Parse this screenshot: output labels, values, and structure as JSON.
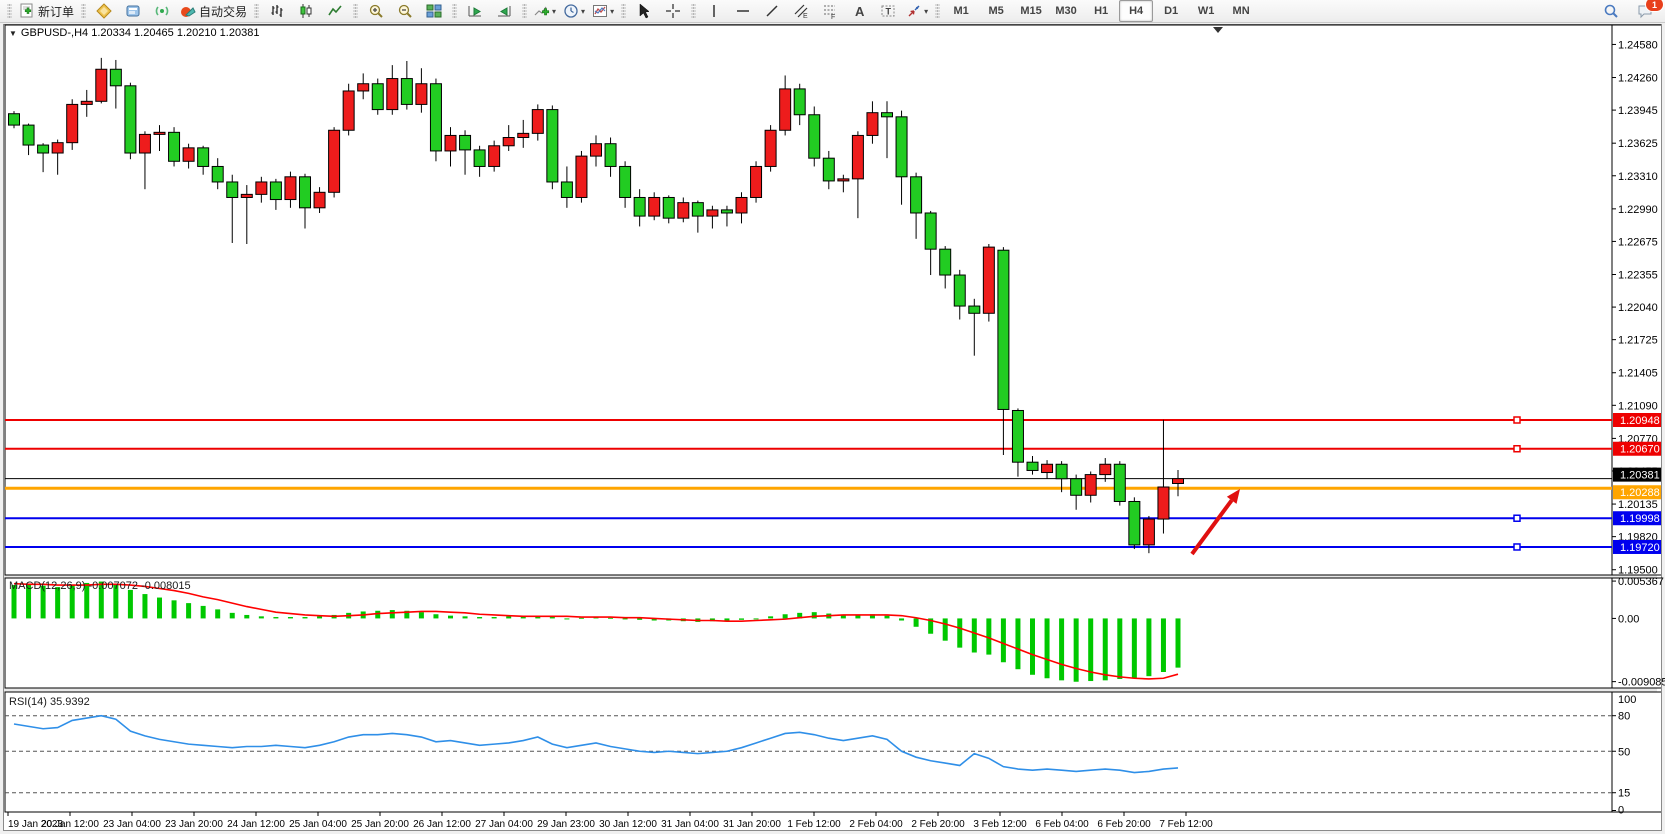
{
  "toolbar": {
    "new_order_label": "新订单",
    "autotrade_label": "自动交易",
    "groups": [
      {
        "items": [
          {
            "icon": "new-order-icon",
            "label_key": "new_order_label"
          }
        ]
      },
      {
        "items": [
          {
            "icon": "mql5-icon"
          },
          {
            "icon": "metaeditor-icon"
          },
          {
            "icon": "signals-icon"
          },
          {
            "icon": "autotrade-icon",
            "label_key": "autotrade_label"
          }
        ]
      },
      {
        "items": [
          {
            "icon": "bar-chart-icon"
          },
          {
            "icon": "candlestick-icon"
          },
          {
            "icon": "line-chart-icon"
          }
        ]
      },
      {
        "items": [
          {
            "icon": "zoom-in-icon"
          },
          {
            "icon": "zoom-out-icon"
          },
          {
            "icon": "tile-windows-icon"
          }
        ]
      },
      {
        "items": [
          {
            "icon": "auto-scroll-icon"
          },
          {
            "icon": "chart-shift-icon"
          }
        ]
      },
      {
        "items": [
          {
            "icon": "indicators-icon",
            "caret": true
          },
          {
            "icon": "periods-icon",
            "caret": true
          },
          {
            "icon": "templates-icon",
            "caret": true
          }
        ]
      },
      {
        "items": [
          {
            "icon": "cursor-icon"
          },
          {
            "icon": "crosshair-icon"
          }
        ]
      },
      {
        "items": [
          {
            "icon": "vline-icon"
          },
          {
            "icon": "hline-icon"
          },
          {
            "icon": "trendline-icon"
          },
          {
            "icon": "channel-icon"
          },
          {
            "icon": "fibonacci-icon"
          },
          {
            "icon": "text-icon"
          },
          {
            "icon": "label-icon"
          },
          {
            "icon": "arrows-icon",
            "caret": true
          }
        ]
      }
    ],
    "timeframes": [
      "M1",
      "M5",
      "M15",
      "M30",
      "H1",
      "H4",
      "D1",
      "W1",
      "MN"
    ],
    "active_timeframe": "H4",
    "right_icons": [
      {
        "icon": "search-icon"
      },
      {
        "icon": "chat-icon",
        "badge": "1"
      }
    ],
    "notification_count": "1"
  },
  "chart": {
    "symbol_title": "GBPUSD-,H4  1.20334 1.20465 1.20210 1.20381",
    "open": "1.20334",
    "high": "1.20465",
    "low": "1.20210",
    "close": "1.20381"
  },
  "chart_data": {
    "type": "candlestick",
    "symbol": "GBPUSD-",
    "timeframe": "H4",
    "price_axis_ticks": [
      "1.24580",
      "1.24260",
      "1.23945",
      "1.23625",
      "1.23310",
      "1.22990",
      "1.22675",
      "1.22355",
      "1.22040",
      "1.21725",
      "1.21405",
      "1.21090",
      "1.20770",
      "1.20455",
      "1.20135",
      "1.19820",
      "1.19500"
    ],
    "price_range": [
      1.19449,
      1.24768
    ],
    "time_labels": [
      "19 Jan 2023",
      "20 Jan 12:00",
      "23 Jan 04:00",
      "23 Jan 20:00",
      "24 Jan 12:00",
      "25 Jan 04:00",
      "25 Jan 20:00",
      "26 Jan 12:00",
      "27 Jan 04:00",
      "29 Jan 23:00",
      "30 Jan 12:00",
      "31 Jan 04:00",
      "31 Jan 20:00",
      "1 Feb 12:00",
      "2 Feb 04:00",
      "2 Feb 20:00",
      "3 Feb 12:00",
      "6 Feb 04:00",
      "6 Feb 20:00",
      "7 Feb 12:00"
    ],
    "candles": [
      [
        1.2391,
        1.23935,
        1.2377,
        1.238
      ],
      [
        1.238,
        1.23815,
        1.2351,
        1.23607
      ],
      [
        1.23607,
        1.23625,
        1.23345,
        1.2353
      ],
      [
        1.2353,
        1.2366,
        1.2332,
        1.2363
      ],
      [
        1.2363,
        1.2405,
        1.2356,
        1.24
      ],
      [
        1.24,
        1.2414,
        1.2388,
        1.2403
      ],
      [
        1.2403,
        1.2445,
        1.2401,
        1.2434
      ],
      [
        1.2434,
        1.2443,
        1.2396,
        1.2418
      ],
      [
        1.2418,
        1.2421,
        1.2347,
        1.2353
      ],
      [
        1.2353,
        1.2374,
        1.2318,
        1.2371
      ],
      [
        1.2371,
        1.238,
        1.2355,
        1.2373
      ],
      [
        1.2373,
        1.2378,
        1.234,
        1.2345
      ],
      [
        1.2345,
        1.2362,
        1.2338,
        1.2358
      ],
      [
        1.2358,
        1.236,
        1.2332,
        1.234
      ],
      [
        1.234,
        1.2348,
        1.2318,
        1.2325
      ],
      [
        1.2325,
        1.2332,
        1.2266,
        1.231
      ],
      [
        1.231,
        1.2322,
        1.2265,
        1.2313
      ],
      [
        1.2313,
        1.233,
        1.2305,
        1.2325
      ],
      [
        1.2325,
        1.2328,
        1.2298,
        1.2308
      ],
      [
        1.2308,
        1.2335,
        1.23,
        1.233
      ],
      [
        1.233,
        1.2333,
        1.228,
        1.23
      ],
      [
        1.23,
        1.232,
        1.2295,
        1.2315
      ],
      [
        1.2315,
        1.2378,
        1.231,
        1.2375
      ],
      [
        1.2375,
        1.242,
        1.237,
        1.2413
      ],
      [
        1.2413,
        1.243,
        1.2405,
        1.242
      ],
      [
        1.242,
        1.2425,
        1.239,
        1.2395
      ],
      [
        1.2395,
        1.2438,
        1.239,
        1.2425
      ],
      [
        1.2425,
        1.2442,
        1.2395,
        1.24
      ],
      [
        1.24,
        1.2435,
        1.2392,
        1.242
      ],
      [
        1.242,
        1.2425,
        1.2345,
        1.2355
      ],
      [
        1.2355,
        1.2378,
        1.234,
        1.237
      ],
      [
        1.237,
        1.2375,
        1.2332,
        1.2356
      ],
      [
        1.2356,
        1.236,
        1.233,
        1.234
      ],
      [
        1.234,
        1.2365,
        1.2335,
        1.236
      ],
      [
        1.236,
        1.238,
        1.2355,
        1.2368
      ],
      [
        1.2368,
        1.2385,
        1.2358,
        1.2372
      ],
      [
        1.2372,
        1.24,
        1.2365,
        1.2395
      ],
      [
        1.2395,
        1.2399,
        1.2318,
        1.2325
      ],
      [
        1.2325,
        1.234,
        1.23,
        1.231
      ],
      [
        1.231,
        1.2355,
        1.2305,
        1.235
      ],
      [
        1.235,
        1.237,
        1.234,
        1.2362
      ],
      [
        1.2362,
        1.2368,
        1.233,
        1.234
      ],
      [
        1.234,
        1.2345,
        1.23,
        1.231
      ],
      [
        1.231,
        1.2318,
        1.2282,
        1.2292
      ],
      [
        1.2292,
        1.2315,
        1.2288,
        1.231
      ],
      [
        1.231,
        1.2312,
        1.2285,
        1.229
      ],
      [
        1.229,
        1.231,
        1.2286,
        1.2305
      ],
      [
        1.2305,
        1.2307,
        1.2276,
        1.2292
      ],
      [
        1.2292,
        1.2302,
        1.228,
        1.2298
      ],
      [
        1.2298,
        1.2302,
        1.2282,
        1.2295
      ],
      [
        1.2295,
        1.2315,
        1.2285,
        1.231
      ],
      [
        1.231,
        1.2345,
        1.2305,
        1.234
      ],
      [
        1.234,
        1.238,
        1.2335,
        1.2375
      ],
      [
        1.2375,
        1.2428,
        1.237,
        1.2415
      ],
      [
        1.2415,
        1.242,
        1.238,
        1.239
      ],
      [
        1.239,
        1.2398,
        1.234,
        1.2348
      ],
      [
        1.2348,
        1.2355,
        1.2318,
        1.2326
      ],
      [
        1.2326,
        1.2332,
        1.2315,
        1.2328
      ],
      [
        1.2328,
        1.2374,
        1.229,
        1.237
      ],
      [
        1.237,
        1.2403,
        1.2362,
        1.2392
      ],
      [
        1.2392,
        1.2403,
        1.2348,
        1.2388
      ],
      [
        1.2388,
        1.2394,
        1.2303,
        1.233
      ],
      [
        1.233,
        1.2334,
        1.227,
        1.2295
      ],
      [
        1.2295,
        1.2297,
        1.2235,
        1.226
      ],
      [
        1.226,
        1.2263,
        1.2222,
        1.2235
      ],
      [
        1.2235,
        1.224,
        1.2192,
        1.2205
      ],
      [
        1.2205,
        1.2212,
        1.2157,
        1.2198
      ],
      [
        1.2198,
        1.2265,
        1.219,
        1.2262
      ],
      [
        1.2259,
        1.2262,
        1.2061,
        1.2105
      ],
      [
        1.2104,
        1.2106,
        1.204,
        1.2054
      ],
      [
        1.2054,
        1.206,
        1.2042,
        1.2046
      ],
      [
        1.2044,
        1.2056,
        1.2038,
        1.2052
      ],
      [
        1.2052,
        1.2055,
        1.2025,
        1.2038
      ],
      [
        1.2038,
        1.2042,
        1.2008,
        1.2022
      ],
      [
        1.2022,
        1.2045,
        1.2015,
        1.2042
      ],
      [
        1.2042,
        1.2058,
        1.2035,
        1.2052
      ],
      [
        1.2052,
        1.2055,
        1.2012,
        1.2016
      ],
      [
        1.2016,
        1.202,
        1.197,
        1.1974
      ],
      [
        1.1974,
        1.2002,
        1.1966,
        1.1999
      ],
      [
        1.1999,
        1.2095,
        1.1985,
        1.203
      ],
      [
        1.20334,
        1.20465,
        1.2021,
        1.20381
      ]
    ],
    "hlines": [
      {
        "price": 1.20948,
        "label": "1.20948",
        "color": "#ee0000",
        "width": 2,
        "handle": true
      },
      {
        "price": 1.2067,
        "label": "1.20670",
        "color": "#ee0000",
        "width": 2,
        "handle": true
      },
      {
        "price": 1.20381,
        "label": "1.20381",
        "color": "#000000",
        "width": 1,
        "handle": false,
        "role": "current-price"
      },
      {
        "price": 1.20288,
        "label": "1.20288",
        "color": "#ffa500",
        "width": 3,
        "handle": false
      },
      {
        "price": 1.19998,
        "label": "1.19998",
        "color": "#0000ee",
        "width": 2,
        "handle": true
      },
      {
        "price": 1.1972,
        "label": "1.19720",
        "color": "#0000ee",
        "width": 2,
        "handle": true
      }
    ],
    "macd": {
      "label": "MACD(12,26,9) -0.007072 -0.008015",
      "axis_ticks": [
        "0.005367",
        "0.00",
        "-0.009085"
      ],
      "tick_values": [
        0.005367,
        0,
        -0.009085
      ],
      "range": [
        -0.01,
        0.00581
      ],
      "histogram": [
        0.0048,
        0.005,
        0.0047,
        0.0045,
        0.0048,
        0.0051,
        0.0053,
        0.0049,
        0.0041,
        0.0035,
        0.003,
        0.0026,
        0.0022,
        0.0018,
        0.0013,
        0.0008,
        0.0005,
        0.0003,
        0.0002,
        0.0002,
        0.0002,
        0.0003,
        0.0005,
        0.0008,
        0.001,
        0.0011,
        0.0012,
        0.0011,
        0.0009,
        0.0006,
        0.0004,
        0.0003,
        0.0002,
        0.0002,
        0.0003,
        0.0003,
        0.0004,
        0.0002,
        0.0,
        0.0001,
        0.0002,
        0.0001,
        -0.0001,
        -0.0002,
        -0.0003,
        -0.0003,
        -0.0004,
        -0.0005,
        -0.0004,
        -0.0003,
        -0.0002,
        0.0,
        0.0003,
        0.0006,
        0.0008,
        0.0009,
        0.0007,
        0.0005,
        0.0005,
        0.0006,
        0.0004,
        -0.0003,
        -0.0012,
        -0.0022,
        -0.0032,
        -0.0042,
        -0.0049,
        -0.0052,
        -0.0063,
        -0.0073,
        -0.0081,
        -0.0086,
        -0.0089,
        -0.0091,
        -0.009,
        -0.0089,
        -0.0087,
        -0.0086,
        -0.0083,
        -0.0077,
        -0.007072
      ],
      "signal": [
        0.005,
        0.0049,
        0.0049,
        0.0048,
        0.0048,
        0.0048,
        0.0049,
        0.0049,
        0.0048,
        0.0046,
        0.0043,
        0.004,
        0.0036,
        0.0031,
        0.0027,
        0.0022,
        0.0017,
        0.0013,
        0.0009,
        0.0007,
        0.0005,
        0.0004,
        0.0003,
        0.0004,
        0.0005,
        0.0007,
        0.0008,
        0.0009,
        0.001,
        0.001,
        0.0009,
        0.0008,
        0.0006,
        0.0005,
        0.0004,
        0.0003,
        0.0003,
        0.0003,
        0.0003,
        0.0002,
        0.0002,
        0.0002,
        0.0001,
        0.0001,
        0.0,
        -0.0001,
        -0.0002,
        -0.0003,
        -0.0003,
        -0.0004,
        -0.0004,
        -0.0003,
        -0.0002,
        -0.0001,
        0.0001,
        0.0003,
        0.0004,
        0.0005,
        0.0005,
        0.0005,
        0.0005,
        0.0004,
        0.0001,
        -0.0003,
        -0.0008,
        -0.0014,
        -0.0021,
        -0.0028,
        -0.0036,
        -0.0044,
        -0.0052,
        -0.0059,
        -0.0066,
        -0.0072,
        -0.0077,
        -0.0081,
        -0.0084,
        -0.0086,
        -0.0087,
        -0.0086,
        -0.008015
      ]
    },
    "rsi": {
      "label": "RSI(14) 35.9392",
      "axis_ticks": [
        "100",
        "80",
        "50",
        "15",
        "0"
      ],
      "tick_values": [
        100,
        80,
        50,
        15,
        0
      ],
      "dashed_levels": [
        80,
        50,
        15
      ],
      "range": [
        0,
        100
      ],
      "values": [
        73,
        71,
        69,
        70,
        76,
        78,
        80,
        77,
        67,
        63,
        60,
        58,
        56,
        55,
        54,
        53,
        54,
        54,
        55,
        54,
        53,
        55,
        58,
        62,
        64,
        64,
        65,
        64,
        62,
        58,
        59,
        57,
        55,
        56,
        57,
        59,
        62,
        56,
        53,
        55,
        57,
        54,
        52,
        50,
        49,
        50,
        49,
        48,
        49,
        50,
        53,
        57,
        61,
        65,
        66,
        64,
        61,
        59,
        61,
        63,
        60,
        50,
        45,
        42,
        40,
        38,
        48,
        44,
        37,
        35,
        34,
        35,
        34,
        33,
        34,
        35,
        34,
        32,
        33,
        35,
        35.94
      ]
    },
    "annotation_arrow": {
      "from": [
        1192,
        554
      ],
      "to": [
        1240,
        489
      ],
      "color": "#e01010"
    },
    "colors": {
      "up_candle": "#ee1c1c",
      "down_candle": "#22cc22",
      "candle_border": "#000000",
      "macd_histogram": "#00c800",
      "macd_signal": "#ff0000",
      "rsi_line": "#2f8fe8",
      "background": "#ffffff",
      "frame": "#000000"
    },
    "legend_position": "none",
    "grid": false
  }
}
